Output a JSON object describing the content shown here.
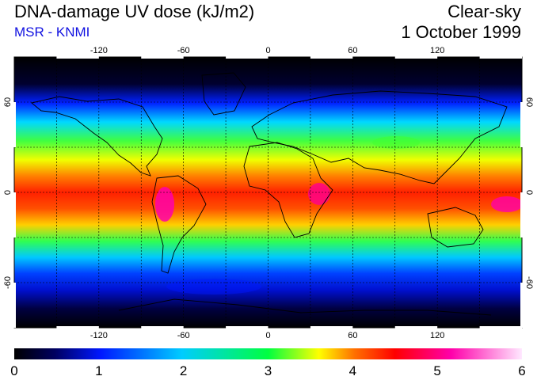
{
  "header": {
    "title": "DNA-damage UV dose (kJ/m2)",
    "subtitle": "MSR - KNMI",
    "sky_condition": "Clear-sky",
    "date": "1 October 1999"
  },
  "map": {
    "projection": "equirectangular",
    "lon_range": [
      -180,
      180
    ],
    "lat_range": [
      -90,
      90
    ],
    "lon_ticks": [
      "-120",
      "-60",
      "0",
      "60",
      "120"
    ],
    "lat_ticks": [
      "60",
      "0",
      "-60"
    ],
    "grid_lon_step": 30,
    "grid_lat_step": 30,
    "gridlines": "dashed"
  },
  "colorbar": {
    "min": 0,
    "max": 6,
    "labels": [
      "0",
      "1",
      "2",
      "3",
      "4",
      "5",
      "6"
    ],
    "colors": [
      "#000000",
      "#000060",
      "#0018ff",
      "#00ccff",
      "#00ff40",
      "#ffff00",
      "#ff7000",
      "#ff0000",
      "#ff00aa",
      "#ffe8ff"
    ]
  }
}
